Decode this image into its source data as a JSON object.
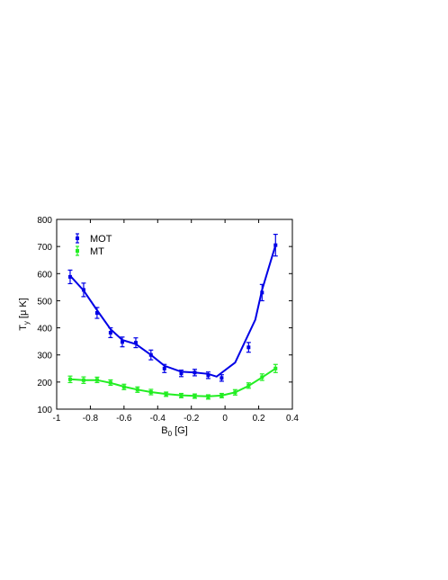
{
  "chart_data": {
    "type": "line",
    "xlabel": "B",
    "xlabel_sub": "0",
    "xlabel_unit": "[G]",
    "ylabel": "T",
    "ylabel_sub": "y",
    "ylabel_unit": "[μ K]",
    "xlim": [
      -1,
      0.4
    ],
    "ylim": [
      100,
      800
    ],
    "xticks": [
      -1,
      -0.8,
      -0.6,
      -0.4,
      -0.2,
      0,
      0.2,
      0.4
    ],
    "xtick_labels": [
      "-1",
      "-0.8",
      "-0.6",
      "-0.4",
      "-0.2",
      "0",
      "0.2",
      "0.4"
    ],
    "yticks": [
      100,
      200,
      300,
      400,
      500,
      600,
      700,
      800
    ],
    "ytick_labels": [
      "100",
      "200",
      "300",
      "400",
      "500",
      "600",
      "700",
      "800"
    ],
    "grid": false,
    "legend_position": "top-left",
    "series": [
      {
        "name": "MOT",
        "color": "#0000e6",
        "points": [
          {
            "x": -0.92,
            "y": 588,
            "err": 25
          },
          {
            "x": -0.84,
            "y": 540,
            "err": 25
          },
          {
            "x": -0.76,
            "y": 455,
            "err": 20
          },
          {
            "x": -0.68,
            "y": 382,
            "err": 18
          },
          {
            "x": -0.61,
            "y": 348,
            "err": 18
          },
          {
            "x": -0.53,
            "y": 345,
            "err": 18
          },
          {
            "x": -0.44,
            "y": 300,
            "err": 18
          },
          {
            "x": -0.36,
            "y": 250,
            "err": 15
          },
          {
            "x": -0.26,
            "y": 232,
            "err": 12
          },
          {
            "x": -0.18,
            "y": 235,
            "err": 12
          },
          {
            "x": -0.1,
            "y": 225,
            "err": 12
          },
          {
            "x": -0.02,
            "y": 215,
            "err": 12
          },
          {
            "x": 0.14,
            "y": 328,
            "err": 18
          },
          {
            "x": 0.22,
            "y": 530,
            "err": 30
          },
          {
            "x": 0.3,
            "y": 705,
            "err": 40
          }
        ],
        "fit": [
          {
            "x": -0.92,
            "y": 592
          },
          {
            "x": -0.84,
            "y": 538
          },
          {
            "x": -0.76,
            "y": 465
          },
          {
            "x": -0.68,
            "y": 395
          },
          {
            "x": -0.61,
            "y": 355
          },
          {
            "x": -0.53,
            "y": 340
          },
          {
            "x": -0.44,
            "y": 300
          },
          {
            "x": -0.36,
            "y": 260
          },
          {
            "x": -0.26,
            "y": 238
          },
          {
            "x": -0.18,
            "y": 235
          },
          {
            "x": -0.1,
            "y": 230
          },
          {
            "x": -0.05,
            "y": 220
          },
          {
            "x": 0.06,
            "y": 272
          },
          {
            "x": 0.18,
            "y": 430
          },
          {
            "x": 0.22,
            "y": 540
          },
          {
            "x": 0.3,
            "y": 705
          }
        ]
      },
      {
        "name": "MT",
        "color": "#22ee22",
        "points": [
          {
            "x": -0.92,
            "y": 210,
            "err": 12
          },
          {
            "x": -0.84,
            "y": 207,
            "err": 12
          },
          {
            "x": -0.76,
            "y": 208,
            "err": 10
          },
          {
            "x": -0.68,
            "y": 198,
            "err": 10
          },
          {
            "x": -0.6,
            "y": 182,
            "err": 10
          },
          {
            "x": -0.52,
            "y": 172,
            "err": 10
          },
          {
            "x": -0.44,
            "y": 163,
            "err": 10
          },
          {
            "x": -0.35,
            "y": 155,
            "err": 8
          },
          {
            "x": -0.26,
            "y": 150,
            "err": 8
          },
          {
            "x": -0.18,
            "y": 148,
            "err": 8
          },
          {
            "x": -0.1,
            "y": 145,
            "err": 8
          },
          {
            "x": -0.02,
            "y": 150,
            "err": 8
          },
          {
            "x": 0.06,
            "y": 162,
            "err": 10
          },
          {
            "x": 0.14,
            "y": 187,
            "err": 10
          },
          {
            "x": 0.22,
            "y": 218,
            "err": 12
          },
          {
            "x": 0.3,
            "y": 250,
            "err": 15
          }
        ],
        "fit": [
          {
            "x": -0.92,
            "y": 210
          },
          {
            "x": -0.84,
            "y": 207
          },
          {
            "x": -0.76,
            "y": 207
          },
          {
            "x": -0.68,
            "y": 197
          },
          {
            "x": -0.6,
            "y": 183
          },
          {
            "x": -0.52,
            "y": 172
          },
          {
            "x": -0.44,
            "y": 163
          },
          {
            "x": -0.35,
            "y": 156
          },
          {
            "x": -0.26,
            "y": 151
          },
          {
            "x": -0.18,
            "y": 149
          },
          {
            "x": -0.1,
            "y": 147
          },
          {
            "x": -0.02,
            "y": 150
          },
          {
            "x": 0.06,
            "y": 162
          },
          {
            "x": 0.14,
            "y": 186
          },
          {
            "x": 0.22,
            "y": 217
          },
          {
            "x": 0.3,
            "y": 250
          }
        ]
      }
    ]
  }
}
